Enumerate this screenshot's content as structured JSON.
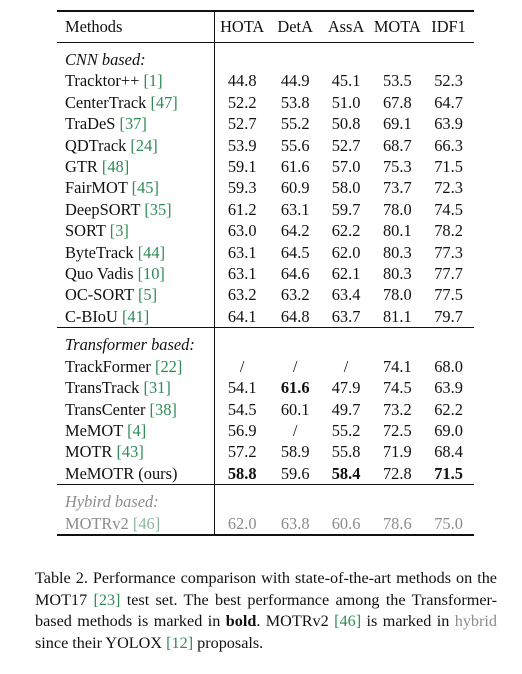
{
  "table": {
    "headers": [
      "Methods",
      "HOTA",
      "DetA",
      "AssA",
      "MOTA",
      "IDF1"
    ],
    "groups": [
      {
        "label": "CNN based:",
        "rows": [
          {
            "name": "Tracktor++",
            "ref": "[1]",
            "values": [
              "44.8",
              "44.9",
              "45.1",
              "53.5",
              "52.3"
            ],
            "bold": []
          },
          {
            "name": "CenterTrack",
            "ref": "[47]",
            "values": [
              "52.2",
              "53.8",
              "51.0",
              "67.8",
              "64.7"
            ],
            "bold": []
          },
          {
            "name": "TraDeS",
            "ref": "[37]",
            "values": [
              "52.7",
              "55.2",
              "50.8",
              "69.1",
              "63.9"
            ],
            "bold": []
          },
          {
            "name": "QDTrack",
            "ref": "[24]",
            "values": [
              "53.9",
              "55.6",
              "52.7",
              "68.7",
              "66.3"
            ],
            "bold": []
          },
          {
            "name": "GTR",
            "ref": "[48]",
            "values": [
              "59.1",
              "61.6",
              "57.0",
              "75.3",
              "71.5"
            ],
            "bold": []
          },
          {
            "name": "FairMOT",
            "ref": "[45]",
            "values": [
              "59.3",
              "60.9",
              "58.0",
              "73.7",
              "72.3"
            ],
            "bold": []
          },
          {
            "name": "DeepSORT",
            "ref": "[35]",
            "values": [
              "61.2",
              "63.1",
              "59.7",
              "78.0",
              "74.5"
            ],
            "bold": []
          },
          {
            "name": "SORT",
            "ref": "[3]",
            "values": [
              "63.0",
              "64.2",
              "62.2",
              "80.1",
              "78.2"
            ],
            "bold": []
          },
          {
            "name": "ByteTrack",
            "ref": "[44]",
            "values": [
              "63.1",
              "64.5",
              "62.0",
              "80.3",
              "77.3"
            ],
            "bold": []
          },
          {
            "name": "Quo Vadis",
            "ref": "[10]",
            "values": [
              "63.1",
              "64.6",
              "62.1",
              "80.3",
              "77.7"
            ],
            "bold": []
          },
          {
            "name": "OC-SORT",
            "ref": "[5]",
            "values": [
              "63.2",
              "63.2",
              "63.4",
              "78.0",
              "77.5"
            ],
            "bold": []
          },
          {
            "name": "C-BIoU",
            "ref": "[41]",
            "values": [
              "64.1",
              "64.8",
              "63.7",
              "81.1",
              "79.7"
            ],
            "bold": []
          }
        ]
      },
      {
        "label": "Transformer based:",
        "rows": [
          {
            "name": "TrackFormer",
            "ref": "[22]",
            "values": [
              "/",
              "/",
              "/",
              "74.1",
              "68.0"
            ],
            "bold": []
          },
          {
            "name": "TransTrack",
            "ref": "[31]",
            "values": [
              "54.1",
              "61.6",
              "47.9",
              "74.5",
              "63.9"
            ],
            "bold": [
              1
            ]
          },
          {
            "name": "TransCenter",
            "ref": "[38]",
            "values": [
              "54.5",
              "60.1",
              "49.7",
              "73.2",
              "62.2"
            ],
            "bold": []
          },
          {
            "name": "MeMOT",
            "ref": "[4]",
            "values": [
              "56.9",
              "/",
              "55.2",
              "72.5",
              "69.0"
            ],
            "bold": []
          },
          {
            "name": "MOTR",
            "ref": "[43]",
            "values": [
              "57.2",
              "58.9",
              "55.8",
              "71.9",
              "68.4"
            ],
            "bold": []
          },
          {
            "name": "MeMOTR (ours)",
            "ref": "",
            "values": [
              "58.8",
              "59.6",
              "58.4",
              "72.8",
              "71.5"
            ],
            "bold": [
              0,
              2,
              4
            ]
          }
        ]
      },
      {
        "label": "Hybird based:",
        "gray": true,
        "rows": [
          {
            "name": "MOTRv2",
            "ref": "[46]",
            "values": [
              "62.0",
              "63.8",
              "60.6",
              "78.6",
              "75.0"
            ],
            "bold": []
          }
        ]
      }
    ]
  },
  "caption": {
    "p1": "Table 2. Performance comparison with state-of-the-art methods on the MOT17 ",
    "ref1": "[23]",
    "p2": " test set.  The best performance among the Transformer-based methods is marked in ",
    "bold_word": "bold",
    "p3": ".  MOTRv2 ",
    "ref2": "[46]",
    "p4": " is marked in ",
    "hybrid_word": "hybrid",
    "p5": " since their YOLOX ",
    "ref3": "[12]",
    "p6": " proposals."
  },
  "colors": {
    "citation": "#2e8b57",
    "gray": "#8c8c8c"
  }
}
